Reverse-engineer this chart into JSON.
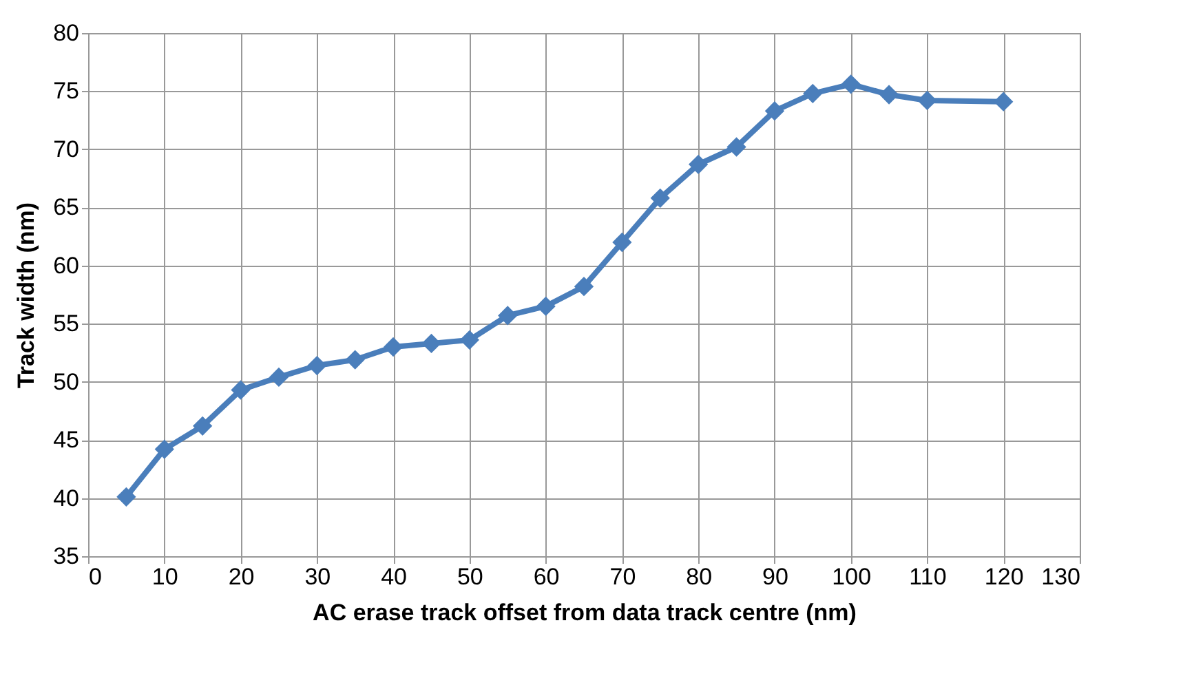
{
  "chart_data": {
    "type": "line",
    "xlabel": "AC erase track offset from data track centre (nm)",
    "ylabel": "Track width (nm)",
    "x": [
      5,
      10,
      15,
      20,
      25,
      30,
      35,
      40,
      45,
      50,
      55,
      60,
      65,
      70,
      75,
      80,
      85,
      90,
      95,
      100,
      105,
      110,
      120
    ],
    "series": [
      {
        "color": "#4a7ebb",
        "values": [
          40.1,
          44.2,
          46.2,
          49.3,
          50.4,
          51.4,
          51.9,
          53.0,
          53.3,
          53.6,
          55.7,
          56.5,
          58.2,
          62.0,
          65.8,
          68.7,
          70.2,
          73.3,
          74.8,
          75.6,
          74.7,
          74.2,
          74.1
        ]
      }
    ],
    "xlim": [
      0,
      130
    ],
    "xticks": [
      0,
      10,
      20,
      30,
      40,
      50,
      60,
      70,
      80,
      90,
      100,
      110,
      120,
      130
    ],
    "ylim": [
      35,
      80
    ],
    "yticks": [
      35,
      40,
      45,
      50,
      55,
      60,
      65,
      70,
      75,
      80
    ],
    "grid": true,
    "marker": "diamond",
    "line_style": "solid"
  }
}
